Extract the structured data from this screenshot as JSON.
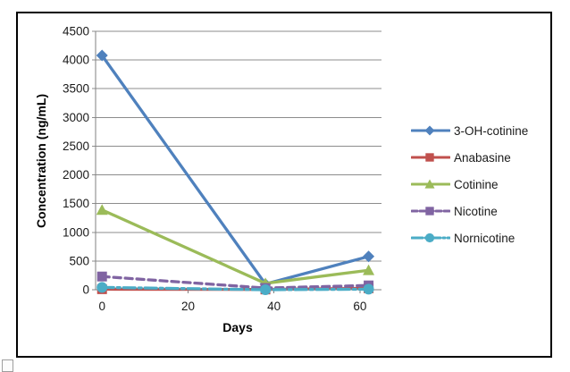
{
  "chart_data": {
    "type": "line",
    "title": "",
    "xlabel": "Days",
    "ylabel": "Concentration (ng/mL)",
    "x": [
      0,
      38,
      62
    ],
    "x_ticks": [
      0,
      20,
      40,
      60
    ],
    "y_ticks": [
      0,
      500,
      1000,
      1500,
      2000,
      2500,
      3000,
      3500,
      4000,
      4500
    ],
    "xlim": [
      -1.5,
      65
    ],
    "ylim": [
      0,
      4500
    ],
    "grid": "horizontal-only",
    "legend_position": "right",
    "axis_color": "#828282",
    "grid_color": "#8c8c8c",
    "series": [
      {
        "name": "3-OH-cotinine",
        "color": "#4F81BD",
        "marker": "diamond",
        "line_style": "solid",
        "values": [
          4080,
          100,
          580
        ]
      },
      {
        "name": "Anabasine",
        "color": "#C0504D",
        "marker": "square",
        "line_style": "solid",
        "values": [
          10,
          5,
          25
        ]
      },
      {
        "name": "Cotinine",
        "color": "#9BBB59",
        "marker": "triangle",
        "line_style": "solid",
        "values": [
          1390,
          110,
          340
        ]
      },
      {
        "name": "Nicotine",
        "color": "#8064A2",
        "marker": "square",
        "line_style": "dashed",
        "values": [
          230,
          30,
          75
        ]
      },
      {
        "name": "Nornicotine",
        "color": "#4BACC6",
        "marker": "circle",
        "line_style": "dashdot",
        "values": [
          40,
          0,
          10
        ]
      }
    ]
  }
}
